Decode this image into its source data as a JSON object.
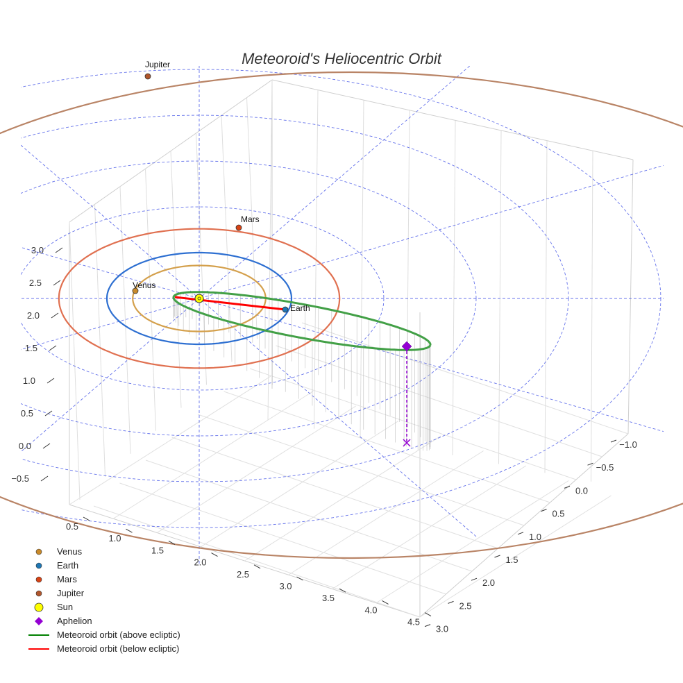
{
  "chart_data": {
    "type": "scatter",
    "title": "Meteoroid's Heliocentric Orbit",
    "axes": {
      "z_ticks": [
        "3.0",
        "2.5",
        "2.0",
        "1.5",
        "1.0",
        "0.5",
        "0.0",
        "−0.5"
      ],
      "x_ticks": [
        "0.5",
        "1.0",
        "1.5",
        "2.0",
        "2.5",
        "3.0",
        "3.5",
        "4.0",
        "4.5"
      ],
      "y_ticks": [
        "−1.0",
        "−0.5",
        "0.0",
        "0.5",
        "1.0",
        "1.5",
        "2.0",
        "2.5",
        "3.0"
      ],
      "grid": true,
      "xlim": [
        0.3,
        4.6
      ],
      "ylim": [
        -1.2,
        3.1
      ],
      "zlim": [
        -0.7,
        3.2
      ]
    },
    "planets": [
      {
        "name": "Venus",
        "orbit_radius_au": 0.72,
        "color": "#d4a04c",
        "marker_color": "#c98a2a"
      },
      {
        "name": "Earth",
        "orbit_radius_au": 1.0,
        "color": "#2d6fd1",
        "marker_color": "#1f77b4"
      },
      {
        "name": "Mars",
        "orbit_radius_au": 1.52,
        "color": "#e07050",
        "marker_color": "#d84315"
      },
      {
        "name": "Jupiter",
        "orbit_radius_au": 5.2,
        "color": "#b98466",
        "marker_color": "#b0562c"
      }
    ],
    "sun": {
      "name": "Sun",
      "color": "#ffff00"
    },
    "aphelion": {
      "name": "Aphelion",
      "color": "#9400d3"
    },
    "meteoroid_orbit": {
      "perihelion_au": 0.33,
      "aphelion_au": 2.65,
      "above_label": "Meteoroid orbit (above ecliptic)",
      "below_label": "Meteoroid orbit (below ecliptic)",
      "above_color": "#2ca02c",
      "below_color": "#ff0000"
    },
    "reference_grid": {
      "circle_radii_au": [
        1,
        2,
        3,
        4,
        5
      ],
      "radial_line_count": 12,
      "color": "#4a5ae8"
    },
    "legend": {
      "position": "bottom-left",
      "entries": [
        {
          "label": "Venus",
          "kind": "dot",
          "color": "#c98a2a"
        },
        {
          "label": "Earth",
          "kind": "dot",
          "color": "#1f77b4"
        },
        {
          "label": "Mars",
          "kind": "dot",
          "color": "#d84315"
        },
        {
          "label": "Jupiter",
          "kind": "dot",
          "color": "#b0562c"
        },
        {
          "label": "Sun",
          "kind": "sun",
          "color": "#ffff00"
        },
        {
          "label": "Aphelion",
          "kind": "diamond",
          "color": "#9400d3"
        },
        {
          "label": "Meteoroid orbit (above ecliptic)",
          "kind": "line",
          "color": "#008000"
        },
        {
          "label": "Meteoroid orbit (below ecliptic)",
          "kind": "line",
          "color": "#ff0000"
        }
      ]
    }
  }
}
